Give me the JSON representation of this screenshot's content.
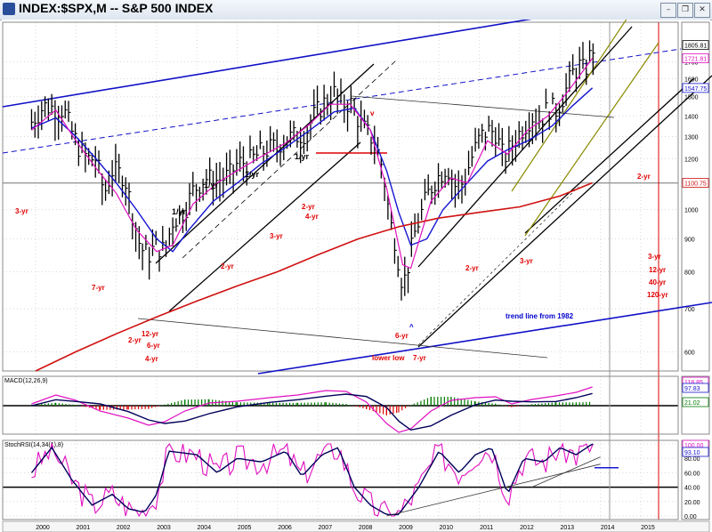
{
  "window": {
    "title": "INDEX:$SPX,M -- S&P 500 INDEX",
    "controls": [
      "minimize-icon",
      "restore-icon",
      "close-icon"
    ]
  },
  "colors": {
    "price": "#000000",
    "ma_blue": "#1515d0",
    "ma_magenta": "#e010c0",
    "ma_red": "#d01010",
    "trend_blue": "#1010c8",
    "olive": "#8a8a00",
    "annotation_red": "#e00000",
    "annotation_blue": "#0000cc",
    "macd_hist_pos": "#007a00",
    "macd_hist_neg": "#e00000"
  },
  "chart_data": [
    {
      "type": "line",
      "panel": "price",
      "title": "INDEX:$SPX,M -- S&P 500 INDEX",
      "y_scale": "log",
      "ylim": [
        560,
        1960
      ],
      "x_ticks": [
        "2000",
        "2001",
        "2002",
        "2003",
        "2004",
        "2005",
        "2006",
        "2007",
        "2008",
        "2009",
        "2010",
        "2011",
        "2012",
        "2013",
        "2014",
        "2015"
      ],
      "y_ticks": [
        600,
        700,
        800,
        900,
        1000,
        1100,
        1200,
        1300,
        1400,
        1500,
        1600,
        1700
      ],
      "value_labels": [
        {
          "text": "1805.81",
          "value": 1805.81,
          "color": "#000000"
        },
        {
          "text": "1721.81",
          "value": 1721.81,
          "color": "#e010c0"
        },
        {
          "text": "1547.75",
          "value": 1547.75,
          "color": "#1515d0"
        },
        {
          "text": "1100.75",
          "value": 1100.75,
          "color": "#d01010"
        }
      ],
      "series": [
        {
          "values": [
            [
              1999.9,
              1370
            ],
            [
              2000.2,
              1450
            ],
            [
              2000.5,
              1440
            ],
            [
              2000.7,
              1430
            ],
            [
              2000.9,
              1320
            ],
            [
              2001.1,
              1240
            ],
            [
              2001.3,
              1200
            ],
            [
              2001.5,
              1200
            ],
            [
              2001.7,
              1060
            ],
            [
              2001.9,
              1150
            ],
            [
              2002.2,
              1130
            ],
            [
              2002.4,
              990
            ],
            [
              2002.6,
              870
            ],
            [
              2002.8,
              850
            ],
            [
              2003.0,
              880
            ],
            [
              2003.2,
              860
            ],
            [
              2003.4,
              960
            ],
            [
              2003.7,
              1000
            ],
            [
              2003.9,
              1070
            ],
            [
              2004.2,
              1120
            ],
            [
              2004.5,
              1110
            ],
            [
              2004.8,
              1130
            ],
            [
              2005.0,
              1180
            ],
            [
              2005.3,
              1190
            ],
            [
              2005.6,
              1230
            ],
            [
              2005.9,
              1250
            ],
            [
              2006.2,
              1290
            ],
            [
              2006.4,
              1300
            ],
            [
              2006.7,
              1320
            ],
            [
              2006.9,
              1400
            ],
            [
              2007.2,
              1480
            ],
            [
              2007.4,
              1520
            ],
            [
              2007.6,
              1460
            ],
            [
              2007.8,
              1470
            ],
            [
              2008.0,
              1380
            ],
            [
              2008.2,
              1320
            ],
            [
              2008.4,
              1280
            ],
            [
              2008.6,
              1160
            ],
            [
              2008.8,
              950
            ],
            [
              2008.9,
              900
            ],
            [
              2009.1,
              760
            ],
            [
              2009.2,
              800
            ],
            [
              2009.4,
              920
            ],
            [
              2009.7,
              1050
            ],
            [
              2009.9,
              1110
            ],
            [
              2010.2,
              1170
            ],
            [
              2010.4,
              1090
            ],
            [
              2010.6,
              1100
            ],
            [
              2010.8,
              1200
            ],
            [
              2011.0,
              1290
            ],
            [
              2011.2,
              1330
            ],
            [
              2011.4,
              1320
            ],
            [
              2011.6,
              1200
            ],
            [
              2011.8,
              1260
            ],
            [
              2012.0,
              1320
            ],
            [
              2012.3,
              1400
            ],
            [
              2012.5,
              1380
            ],
            [
              2012.7,
              1440
            ],
            [
              2012.9,
              1430
            ],
            [
              2013.1,
              1510
            ],
            [
              2013.3,
              1630
            ],
            [
              2013.5,
              1680
            ],
            [
              2013.6,
              1640
            ],
            [
              2013.7,
              1700
            ],
            [
              2013.8,
              1790
            ]
          ]
        },
        {
          "values": [
            [
              1999.9,
              1340
            ],
            [
              2000.5,
              1390
            ],
            [
              2001.0,
              1300
            ],
            [
              2001.5,
              1200
            ],
            [
              2002.0,
              1100
            ],
            [
              2002.5,
              1000
            ],
            [
              2003.0,
              900
            ],
            [
              2003.4,
              860
            ],
            [
              2003.8,
              930
            ],
            [
              2004.4,
              1030
            ],
            [
              2005.0,
              1100
            ],
            [
              2005.6,
              1180
            ],
            [
              2006.2,
              1250
            ],
            [
              2006.8,
              1330
            ],
            [
              2007.4,
              1420
            ],
            [
              2007.9,
              1440
            ],
            [
              2008.3,
              1330
            ],
            [
              2008.7,
              1150
            ],
            [
              2009.0,
              990
            ],
            [
              2009.3,
              880
            ],
            [
              2009.7,
              900
            ],
            [
              2010.1,
              1000
            ],
            [
              2010.7,
              1100
            ],
            [
              2011.2,
              1190
            ],
            [
              2011.7,
              1240
            ],
            [
              2012.2,
              1280
            ],
            [
              2012.8,
              1350
            ],
            [
              2013.3,
              1450
            ],
            [
              2013.8,
              1548
            ]
          ]
        },
        {
          "values": [
            [
              1999.9,
              1330
            ],
            [
              2000.5,
              1430
            ],
            [
              2001.0,
              1280
            ],
            [
              2001.5,
              1160
            ],
            [
              2002.0,
              1060
            ],
            [
              2002.5,
              930
            ],
            [
              2003.0,
              860
            ],
            [
              2003.4,
              880
            ],
            [
              2003.9,
              1020
            ],
            [
              2004.5,
              1100
            ],
            [
              2005.0,
              1150
            ],
            [
              2005.6,
              1210
            ],
            [
              2006.2,
              1270
            ],
            [
              2006.8,
              1360
            ],
            [
              2007.3,
              1460
            ],
            [
              2007.8,
              1460
            ],
            [
              2008.3,
              1330
            ],
            [
              2008.7,
              1080
            ],
            [
              2009.1,
              820
            ],
            [
              2009.3,
              810
            ],
            [
              2009.8,
              1030
            ],
            [
              2010.3,
              1120
            ],
            [
              2010.7,
              1100
            ],
            [
              2011.2,
              1280
            ],
            [
              2011.7,
              1220
            ],
            [
              2012.2,
              1330
            ],
            [
              2012.7,
              1400
            ],
            [
              2013.2,
              1530
            ],
            [
              2013.8,
              1722
            ]
          ]
        },
        {
          "values": [
            [
              2000.0,
              560
            ],
            [
              2001.0,
              600
            ],
            [
              2002.0,
              640
            ],
            [
              2003.0,
              680
            ],
            [
              2004.0,
              720
            ],
            [
              2005.0,
              760
            ],
            [
              2006.0,
              800
            ],
            [
              2007.0,
              850
            ],
            [
              2008.0,
              900
            ],
            [
              2009.0,
              940
            ],
            [
              2010.0,
              970
            ],
            [
              2011.0,
              990
            ],
            [
              2012.0,
              1010
            ],
            [
              2013.0,
              1050
            ],
            [
              2013.8,
              1100.75
            ]
          ]
        }
      ]
    },
    {
      "type": "line",
      "panel": "macd",
      "title": "MACD(12,26,9)",
      "value_labels": [
        {
          "text": "118.85",
          "color": "#e010c0"
        },
        {
          "text": "97.83",
          "color": "#1515d0"
        },
        {
          "text": "21.02",
          "color": "#007a00"
        }
      ]
    },
    {
      "type": "line",
      "panel": "stochrsi",
      "title": "StochRSI(14,34(1),8)",
      "y_ticks": [
        0.0,
        20.0,
        40.0,
        60.0,
        80.0,
        100.0
      ],
      "y_tick_labels": [
        "0.00",
        "20.00",
        "40.00",
        "60.00",
        "80.00",
        "100.00"
      ],
      "value_labels": [
        {
          "text": "100.00",
          "color": "#e010c0"
        },
        {
          "text": "93.10",
          "color": "#1515d0"
        }
      ]
    }
  ],
  "annotations_black": [
    "1/yr",
    "1/yr",
    "1/yr",
    "1/yr"
  ],
  "annotations_red": [
    "3-yr",
    "7-yr",
    "12-yr",
    "2-yr",
    "6-yr",
    "4-yr",
    "2-yr",
    "3-yr",
    "2-yr",
    "4-yr",
    "v",
    "6-yr",
    "lower low",
    "7-yr",
    "2-yr",
    "3-yr",
    "2-yr",
    "3-yr",
    "12-yr",
    "40-yr",
    "120-yr"
  ],
  "annotations_blue": [
    "trend line from 1982",
    "^"
  ]
}
